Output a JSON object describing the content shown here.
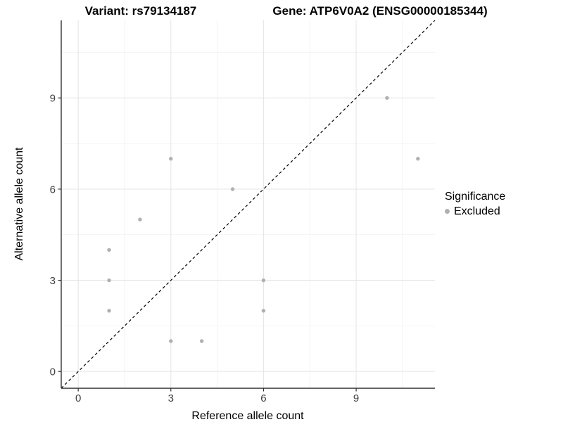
{
  "header": {
    "variant_title": "Variant: rs79134187",
    "gene_title": "Gene: ATP6V0A2 (ENSG00000185344)"
  },
  "chart_data": {
    "type": "scatter",
    "title": "Variant: rs79134187  /  Gene: ATP6V0A2 (ENSG00000185344)",
    "xlabel": "Reference allele count",
    "ylabel": "Alternative allele count",
    "xlim": [
      -0.55,
      11.55
    ],
    "ylim": [
      -0.55,
      11.55
    ],
    "x_ticks": [
      0,
      3,
      6,
      9
    ],
    "y_ticks": [
      0,
      3,
      6,
      9
    ],
    "x_minor_ticks": [
      1.5,
      4.5,
      7.5,
      10.5
    ],
    "y_minor_ticks": [
      1.5,
      4.5,
      7.5,
      10.5
    ],
    "grid": true,
    "legend_position": "right",
    "series": [
      {
        "name": "Excluded",
        "points": [
          [
            1,
            2
          ],
          [
            1,
            3
          ],
          [
            1,
            4
          ],
          [
            2,
            5
          ],
          [
            3,
            1
          ],
          [
            3,
            7
          ],
          [
            4,
            1
          ],
          [
            5,
            6
          ],
          [
            6,
            2
          ],
          [
            6,
            3
          ],
          [
            10,
            9
          ],
          [
            11,
            7
          ]
        ]
      }
    ],
    "identity_line": {
      "from": [
        -0.55,
        -0.55
      ],
      "to": [
        11.55,
        11.55
      ],
      "style": "dashed"
    }
  },
  "legend": {
    "title": "Significance",
    "items": [
      {
        "label": "Excluded",
        "color": "#b0b0b0"
      }
    ]
  },
  "colors": {
    "point": "#b0b0b0",
    "grid_major": "#e7e7e7",
    "grid_minor": "#f2f2f2",
    "axis_line": "#333333",
    "tick_label": "#404040",
    "identity_line": "#000000",
    "background": "#ffffff"
  }
}
